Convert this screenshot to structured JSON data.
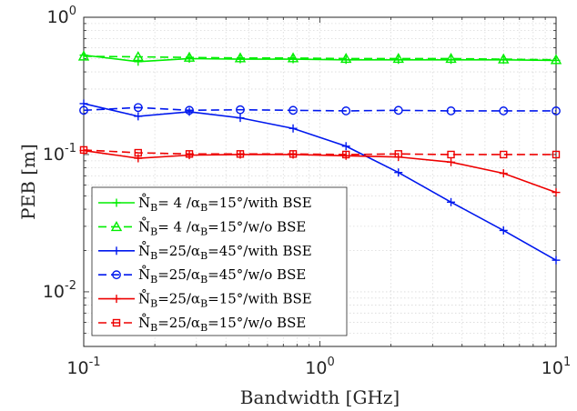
{
  "chart_data": {
    "type": "line",
    "xlabel": "Bandwidth [GHz]",
    "ylabel": "PEB [m]",
    "xscale": "log",
    "yscale": "log",
    "xlim": [
      0.1,
      10
    ],
    "ylim": [
      0.004,
      1
    ],
    "grid": true,
    "legend_position": "bottom-left",
    "x_ticks": [
      {
        "base": "10",
        "exp": "-1"
      },
      {
        "base": "10",
        "exp": "0"
      },
      {
        "base": "10",
        "exp": "1"
      }
    ],
    "y_ticks": [
      {
        "value": 0.01,
        "base": "10",
        "exp": "-2"
      },
      {
        "value": 0.1,
        "base": "10",
        "exp": "-1"
      },
      {
        "value": 1,
        "base": "10",
        "exp": "0"
      }
    ],
    "x": [
      0.1,
      0.17,
      0.28,
      0.46,
      0.77,
      1.29,
      2.15,
      3.59,
      5.99,
      10
    ],
    "series": [
      {
        "legend": {
          "pre": "N̊",
          "sub1": "B",
          "mid": "= 4 /α",
          "sub2": "B",
          "post": "=15°/with BSE"
        },
        "color": "#00ee00",
        "dash": "solid",
        "marker": "plus",
        "values": [
          0.53,
          0.475,
          0.5,
          0.495,
          0.495,
          0.49,
          0.49,
          0.49,
          0.49,
          0.485
        ]
      },
      {
        "legend": {
          "pre": "N̊",
          "sub1": "B",
          "mid": "= 4 /α",
          "sub2": "B",
          "post": "=15°/w/o BSE"
        },
        "color": "#00ee00",
        "dash": "dashed",
        "marker": "triangle",
        "values": [
          0.52,
          0.515,
          0.51,
          0.505,
          0.505,
          0.5,
          0.5,
          0.5,
          0.495,
          0.49
        ]
      },
      {
        "legend": {
          "pre": "N̊",
          "sub1": "B",
          "mid": "=25/α",
          "sub2": "B",
          "post": "=45°/with BSE"
        },
        "color": "#0018ee",
        "dash": "solid",
        "marker": "plus",
        "values": [
          0.235,
          0.19,
          0.205,
          0.185,
          0.155,
          0.115,
          0.074,
          0.045,
          0.028,
          0.017
        ]
      },
      {
        "legend": {
          "pre": "N̊",
          "sub1": "B",
          "mid": "=25/α",
          "sub2": "B",
          "post": "=45°/w/o BSE"
        },
        "color": "#0018ee",
        "dash": "dashed",
        "marker": "circle",
        "values": [
          0.21,
          0.22,
          0.21,
          0.212,
          0.21,
          0.208,
          0.21,
          0.208,
          0.208,
          0.208
        ]
      },
      {
        "legend": {
          "pre": "N̊",
          "sub1": "B",
          "mid": "=25/α",
          "sub2": "B",
          "post": "=15°/with BSE"
        },
        "color": "#ee0000",
        "dash": "solid",
        "marker": "plus",
        "values": [
          0.107,
          0.094,
          0.099,
          0.1,
          0.1,
          0.098,
          0.096,
          0.088,
          0.073,
          0.053
        ]
      },
      {
        "legend": {
          "pre": "N̊",
          "sub1": "B",
          "mid": "=25/α",
          "sub2": "B",
          "post": "=15°/w/o BSE"
        },
        "color": "#ee0000",
        "dash": "dashed",
        "marker": "square",
        "values": [
          0.108,
          0.103,
          0.101,
          0.101,
          0.101,
          0.1,
          0.101,
          0.1,
          0.1,
          0.1
        ]
      }
    ]
  }
}
